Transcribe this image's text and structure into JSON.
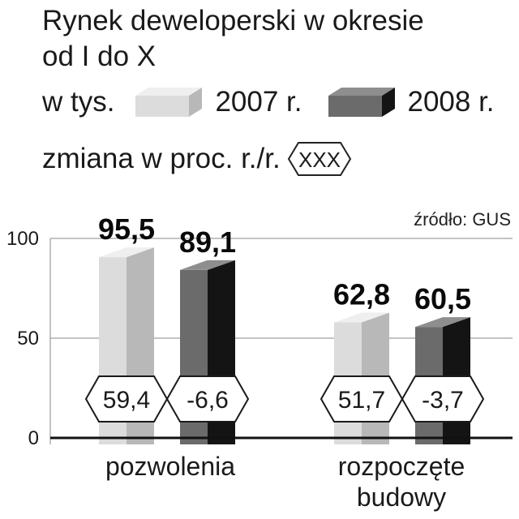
{
  "header": {
    "title_line1": "Rynek deweloperski w okresie",
    "title_line2": "od I do X",
    "unit_label": "w tys.",
    "change_label": "zmiana w proc. r./r.",
    "change_sample": "XXX",
    "source": "źródło: GUS"
  },
  "colors": {
    "series_2007_front": "#dcdcdc",
    "series_2007_side": "#b8b8b8",
    "series_2007_top": "#efefef",
    "series_2008_front": "#6b6b6b",
    "series_2008_side": "#141414",
    "series_2008_top": "#8e8e8e",
    "grid": "#888888",
    "text": "#1a1a1a"
  },
  "chart_data": {
    "type": "bar",
    "categories": [
      "pozwolenia",
      "rozpoczęte budowy"
    ],
    "series": [
      {
        "name": "2007 r.",
        "values": [
          95.5,
          62.8
        ],
        "value_labels": [
          "95,5",
          "62,8"
        ]
      },
      {
        "name": "2008 r.",
        "values": [
          89.1,
          60.5
        ],
        "value_labels": [
          "89,1",
          "60,5"
        ]
      }
    ],
    "yoy_change_percent": [
      [
        59.4,
        51.7
      ],
      [
        -6.6,
        -3.7
      ]
    ],
    "yoy_change_labels": [
      [
        "59,4",
        "51,7"
      ],
      [
        "-6,6",
        "-3,7"
      ]
    ],
    "ylim": [
      0,
      100
    ],
    "yticks": [
      0,
      50,
      100
    ],
    "ytick_labels": [
      "0",
      "50",
      "100"
    ],
    "title": "Rynek deweloperski w okresie od I do X",
    "ylabel": "w tys.",
    "grid": true,
    "legend_placement": "top"
  }
}
